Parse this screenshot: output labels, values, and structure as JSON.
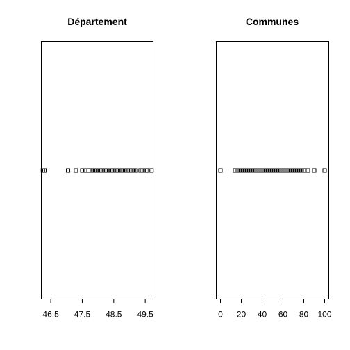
{
  "chart_data": [
    {
      "type": "scatter",
      "title": "Département",
      "xlabel": "",
      "ylabel": "",
      "xlim": [
        46.2,
        49.75
      ],
      "xticks": [
        46.5,
        47.5,
        48.5,
        49.5
      ],
      "xtick_labels": [
        "46.5",
        "47.5",
        "48.5",
        "49.5"
      ],
      "grid": false,
      "x": [
        46.25,
        46.3,
        47.05,
        47.3,
        47.5,
        47.6,
        47.7,
        47.8,
        47.85,
        47.9,
        47.95,
        48.0,
        48.05,
        48.1,
        48.15,
        48.2,
        48.25,
        48.3,
        48.35,
        48.4,
        48.45,
        48.5,
        48.55,
        48.6,
        48.65,
        48.7,
        48.75,
        48.8,
        48.85,
        48.9,
        48.95,
        49.0,
        49.05,
        49.1,
        49.15,
        49.2,
        49.35,
        49.4,
        49.45,
        49.5,
        49.55,
        49.7
      ]
    },
    {
      "type": "scatter",
      "title": "Communes",
      "xlabel": "",
      "ylabel": "",
      "xlim": [
        -4,
        104
      ],
      "xticks": [
        0,
        20,
        40,
        60,
        80,
        100
      ],
      "xtick_labels": [
        "0",
        "20",
        "40",
        "60",
        "80",
        "100"
      ],
      "grid": false,
      "x": [
        0,
        14,
        16,
        18,
        20,
        22,
        24,
        26,
        28,
        30,
        32,
        34,
        36,
        38,
        40,
        42,
        44,
        46,
        48,
        50,
        52,
        54,
        56,
        58,
        60,
        62,
        64,
        66,
        68,
        70,
        72,
        74,
        76,
        78,
        80,
        84,
        90,
        100
      ]
    }
  ]
}
